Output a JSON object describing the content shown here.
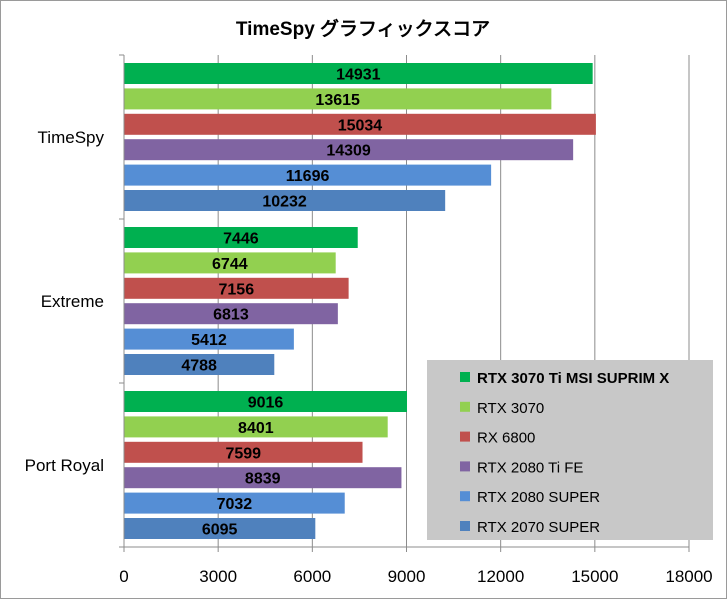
{
  "chart_data": {
    "type": "bar",
    "orientation": "horizontal",
    "title": "TimeSpy グラフィックスコア",
    "categories": [
      "TimeSpy",
      "Extreme",
      "Port Royal"
    ],
    "series": [
      {
        "name": "RTX 3070 Ti MSI SUPRIM X",
        "color": "#00b050",
        "values": [
          14931,
          7446,
          9016
        ]
      },
      {
        "name": "RTX 3070",
        "color": "#92d050",
        "values": [
          13615,
          6744,
          8401
        ]
      },
      {
        "name": "RX 6800",
        "color": "#c0504d",
        "values": [
          15034,
          7156,
          7599
        ]
      },
      {
        "name": "RTX 2080 Ti FE",
        "color": "#8064a2",
        "values": [
          14309,
          6813,
          8839
        ]
      },
      {
        "name": "RTX 2080 SUPER",
        "color": "#558ed5",
        "values": [
          11696,
          5412,
          7032
        ]
      },
      {
        "name": "RTX 2070 SUPER",
        "color": "#4f81bd",
        "values": [
          10232,
          4788,
          6095
        ]
      }
    ],
    "xlim": [
      0,
      18000
    ],
    "ticks": [
      "0",
      "3000",
      "6000",
      "9000",
      "12000",
      "15000",
      "18000"
    ],
    "grid": true,
    "legend_position": "bottom-right",
    "legend_highlight": "RTX 3070 Ti MSI SUPRIM X"
  }
}
